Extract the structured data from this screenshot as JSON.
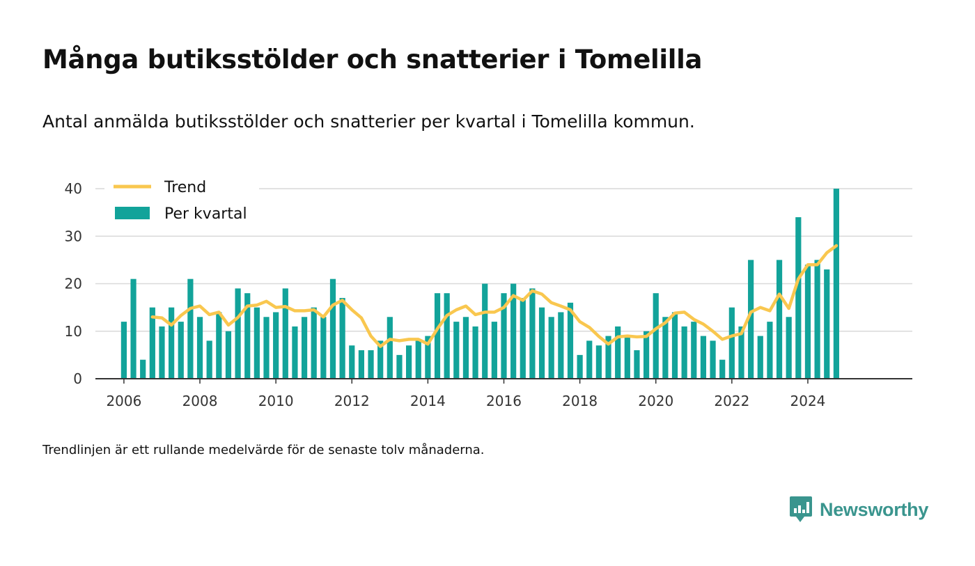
{
  "header": {
    "title": "Många butiksstölder och snatterier i Tomelilla",
    "subtitle": "Antal anmälda butiksstölder och snatterier per kvartal i Tomelilla kommun."
  },
  "footnote": "Trendlinjen är ett rullande medelvärde för de senaste tolv månaderna.",
  "brand": {
    "name": "Newsworthy",
    "icon": "newsworthy-logo-icon",
    "color": "#3a958e"
  },
  "colors": {
    "bars": "#12a39a",
    "trend": "#f9c74f",
    "grid": "#d9d9d9",
    "axis": "#333333"
  },
  "chart_data": {
    "type": "bar",
    "title": "Många butiksstölder och snatterier i Tomelilla",
    "x_ticks": [
      2006,
      2008,
      2010,
      2012,
      2014,
      2016,
      2018,
      2020,
      2022,
      2024
    ],
    "y_ticks": [
      0,
      10,
      20,
      30,
      40
    ],
    "ylim": [
      0,
      40
    ],
    "xlim": [
      2005.25,
      2026.75
    ],
    "grid": "horizontal",
    "legend_position": "top-left",
    "series": [
      {
        "name": "Per kvartal",
        "type": "bar",
        "x": [
          2006.0,
          2006.25,
          2006.5,
          2006.75,
          2007.0,
          2007.25,
          2007.5,
          2007.75,
          2008.0,
          2008.25,
          2008.5,
          2008.75,
          2009.0,
          2009.25,
          2009.5,
          2009.75,
          2010.0,
          2010.25,
          2010.5,
          2010.75,
          2011.0,
          2011.25,
          2011.5,
          2011.75,
          2012.0,
          2012.25,
          2012.5,
          2012.75,
          2013.0,
          2013.25,
          2013.5,
          2013.75,
          2014.0,
          2014.25,
          2014.5,
          2014.75,
          2015.0,
          2015.25,
          2015.5,
          2015.75,
          2016.0,
          2016.25,
          2016.5,
          2016.75,
          2017.0,
          2017.25,
          2017.5,
          2017.75,
          2018.0,
          2018.25,
          2018.5,
          2018.75,
          2019.0,
          2019.25,
          2019.5,
          2019.75,
          2020.0,
          2020.25,
          2020.5,
          2020.75,
          2021.0,
          2021.25,
          2021.5,
          2021.75,
          2022.0,
          2022.25,
          2022.5,
          2022.75,
          2023.0,
          2023.25,
          2023.5,
          2023.75,
          2024.0,
          2024.25,
          2024.5,
          2024.75
        ],
        "values": [
          12,
          21,
          4,
          15,
          11,
          15,
          12,
          21,
          13,
          8,
          14,
          10,
          19,
          18,
          15,
          13,
          14,
          19,
          11,
          13,
          15,
          13,
          21,
          17,
          7,
          6,
          6,
          8,
          13,
          5,
          7,
          8,
          9,
          18,
          18,
          12,
          13,
          11,
          20,
          12,
          18,
          20,
          17,
          19,
          15,
          13,
          14,
          16,
          5,
          8,
          7,
          9,
          11,
          9,
          6,
          10,
          18,
          13,
          14,
          11,
          12,
          9,
          8,
          4,
          15,
          11,
          25,
          9,
          12,
          25,
          13,
          34,
          24,
          25,
          23,
          40
        ]
      },
      {
        "name": "Trend",
        "type": "line",
        "x": [
          2006.75,
          2007.0,
          2007.25,
          2007.5,
          2007.75,
          2008.0,
          2008.25,
          2008.5,
          2008.75,
          2009.0,
          2009.25,
          2009.5,
          2009.75,
          2010.0,
          2010.25,
          2010.5,
          2010.75,
          2011.0,
          2011.25,
          2011.5,
          2011.75,
          2012.0,
          2012.25,
          2012.5,
          2012.75,
          2013.0,
          2013.25,
          2013.5,
          2013.75,
          2014.0,
          2014.25,
          2014.5,
          2014.75,
          2015.0,
          2015.25,
          2015.5,
          2015.75,
          2016.0,
          2016.25,
          2016.5,
          2016.75,
          2017.0,
          2017.25,
          2017.5,
          2017.75,
          2018.0,
          2018.25,
          2018.5,
          2018.75,
          2019.0,
          2019.25,
          2019.5,
          2019.75,
          2020.0,
          2020.25,
          2020.5,
          2020.75,
          2021.0,
          2021.25,
          2021.5,
          2021.75,
          2022.0,
          2022.25,
          2022.5,
          2022.75,
          2023.0,
          2023.25,
          2023.5,
          2023.75,
          2024.0,
          2024.25,
          2024.5,
          2024.75
        ],
        "values": [
          13,
          12.8,
          11.3,
          13.3,
          14.8,
          15.3,
          13.5,
          14,
          11.3,
          12.9,
          15.3,
          15.5,
          16.3,
          15,
          15.2,
          14.3,
          14.3,
          14.5,
          13,
          15.5,
          16.5,
          14.5,
          12.8,
          9,
          6.8,
          8.3,
          8,
          8.3,
          8.3,
          7.3,
          10.5,
          13.3,
          14.5,
          15.3,
          13.5,
          14,
          14,
          15,
          17.5,
          16.5,
          18.5,
          17.8,
          16,
          15.3,
          14.5,
          12,
          10.8,
          8.9,
          7.3,
          8.8,
          9,
          8.8,
          8.9,
          10.5,
          11.8,
          13.8,
          14,
          12.5,
          11.5,
          10,
          8.3,
          9,
          9.5,
          14,
          15,
          14.3,
          17.8,
          14.8,
          21,
          24,
          24,
          26.5,
          28
        ]
      }
    ]
  }
}
